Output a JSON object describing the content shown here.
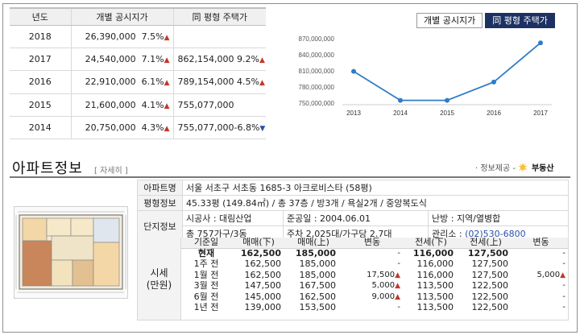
{
  "price_table": {
    "headers": [
      "년도",
      "개별 공시지가",
      "同 평형 주택가"
    ],
    "rows": [
      {
        "year": "2018",
        "land": "26,390,000",
        "land_rate": "7.5%",
        "land_dir": "up",
        "house": "",
        "house_rate": "",
        "house_dir": ""
      },
      {
        "year": "2017",
        "land": "24,540,000",
        "land_rate": "7.1%",
        "land_dir": "up",
        "house": "862,154,000",
        "house_rate": "9.2%",
        "house_dir": "up"
      },
      {
        "year": "2016",
        "land": "22,910,000",
        "land_rate": "6.1%",
        "land_dir": "up",
        "house": "789,154,000",
        "house_rate": "4.5%",
        "house_dir": "up"
      },
      {
        "year": "2015",
        "land": "21,600,000",
        "land_rate": "4.1%",
        "land_dir": "up",
        "house": "755,077,000",
        "house_rate": "",
        "house_dir": ""
      },
      {
        "year": "2014",
        "land": "20,750,000",
        "land_rate": "4.3%",
        "land_dir": "up",
        "house": "755,077,000",
        "house_rate": "-6.8%",
        "house_dir": "down"
      }
    ]
  },
  "chart_tabs": {
    "individual": "개별 공시지가",
    "same_size": "同 평형 주택가",
    "active": "same_size"
  },
  "chart_data": {
    "type": "line",
    "x": [
      "2013",
      "2014",
      "2015",
      "2016",
      "2017"
    ],
    "series": [
      {
        "values": [
          809000000,
          755077000,
          755077000,
          789154000,
          862154000
        ]
      }
    ],
    "yticks": [
      "750,000,000",
      "780,000,000",
      "810,000,000",
      "840,000,000",
      "870,000,000"
    ],
    "ylim": [
      750000000,
      870000000
    ],
    "color": "#2e7dc7",
    "grid": false
  },
  "apartment": {
    "title": "아파트정보",
    "detail_link": "[ 자세히 ]",
    "provider_label": "· 정보제공 -",
    "provider_name": "부동산",
    "rows": {
      "name_label": "아파트명",
      "name_value": "서울 서초구 서초동 1685-3 아크로비스타 (58평)",
      "size_label": "평형정보",
      "size_value": "45.33평 (149.84㎡) / 총 37층 / 방3개 / 욕실2개 / 중앙복도식",
      "complex_label": "단지정보",
      "builder": "시공사 : 대림산업",
      "completed": "준공일 : 2004.06.01",
      "heating": "난방 : 지역/열병합",
      "households": "총 757가구/3동",
      "parking": "주차 2,025대/가구당 2.7대",
      "office_label": "관리소 :",
      "office_phone": "(02)530-6800"
    },
    "market_label_1": "시세",
    "market_label_2": "(만원)"
  },
  "sale_table": {
    "headers": [
      "기준일",
      "매매(下)",
      "매매(上)",
      "변동",
      "전세(下)",
      "전세(上)",
      "변동"
    ],
    "rows": [
      {
        "date": "현재",
        "s_lo": "162,500",
        "s_hi": "185,000",
        "s_chg": "-",
        "s_dir": "",
        "j_lo": "116,000",
        "j_hi": "127,500",
        "j_chg": "-",
        "j_dir": "",
        "bold": true
      },
      {
        "date": "1주 전",
        "s_lo": "162,500",
        "s_hi": "185,000",
        "s_chg": "-",
        "s_dir": "",
        "j_lo": "116,000",
        "j_hi": "127,500",
        "j_chg": "-",
        "j_dir": "",
        "bold": false
      },
      {
        "date": "1월 전",
        "s_lo": "162,500",
        "s_hi": "185,000",
        "s_chg": "17,500",
        "s_dir": "up",
        "j_lo": "116,000",
        "j_hi": "127,500",
        "j_chg": "5,000",
        "j_dir": "up",
        "bold": false
      },
      {
        "date": "3월 전",
        "s_lo": "147,500",
        "s_hi": "167,500",
        "s_chg": "5,000",
        "s_dir": "up",
        "j_lo": "113,500",
        "j_hi": "122,500",
        "j_chg": "-",
        "j_dir": "",
        "bold": false
      },
      {
        "date": "6월 전",
        "s_lo": "145,000",
        "s_hi": "162,500",
        "s_chg": "9,000",
        "s_dir": "up",
        "j_lo": "113,500",
        "j_hi": "122,500",
        "j_chg": "-",
        "j_dir": "",
        "bold": false
      },
      {
        "date": "1년 전",
        "s_lo": "139,000",
        "s_hi": "153,500",
        "s_chg": "-",
        "s_dir": "",
        "j_lo": "113,500",
        "j_hi": "122,500",
        "j_chg": "-",
        "j_dir": "",
        "bold": false
      }
    ]
  }
}
